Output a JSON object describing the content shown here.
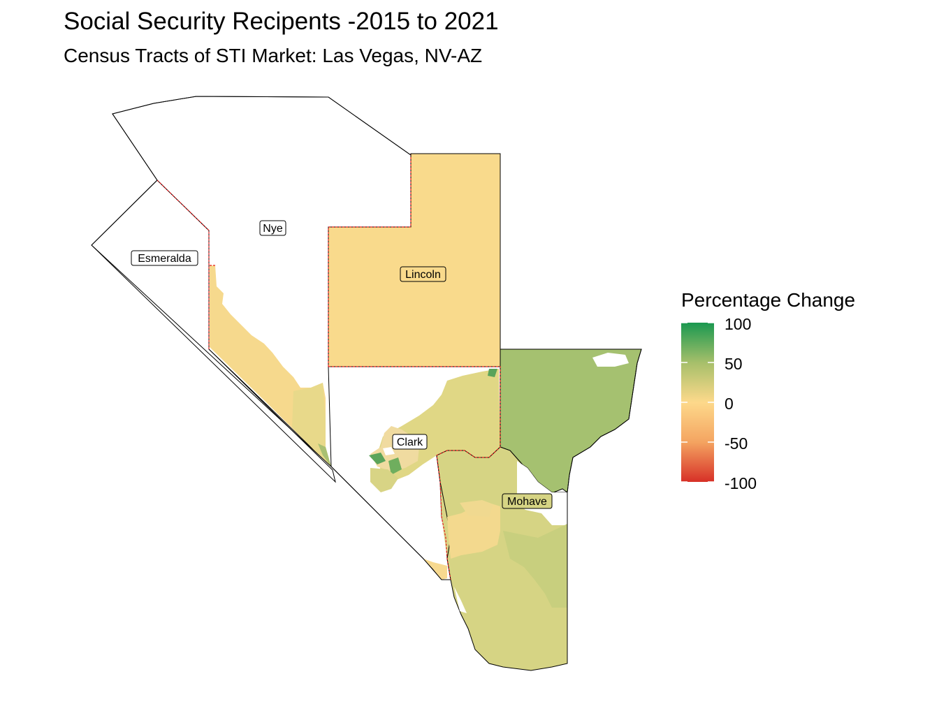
{
  "title": "Social Security Recipents -2015 to 2021",
  "subtitle": "Census Tracts of STI Market: Las Vegas, NV-AZ",
  "counties": {
    "nye": "Nye",
    "esmeralda": "Esmeralda",
    "lincoln": "Lincoln",
    "clark": "Clark",
    "mohave": "Mohave"
  },
  "legend": {
    "title": "Percentage Change",
    "ticks": [
      "100",
      "50",
      "0",
      "-50",
      "-100"
    ],
    "range": [
      -100,
      100
    ],
    "colors": {
      "high": "#1a9850",
      "mid_high": "#a6bf6a",
      "zero": "#fdd98b",
      "low": "#d73027"
    }
  },
  "colors": {
    "county_boundary": "#000000",
    "study_boundary": "#e31a1c",
    "lincoln_fill": "#f9da8c",
    "mohave_north_fill": "#a5c170",
    "clark_fill": "#e2d786",
    "mohave_south_fill": "#d5d383"
  }
}
